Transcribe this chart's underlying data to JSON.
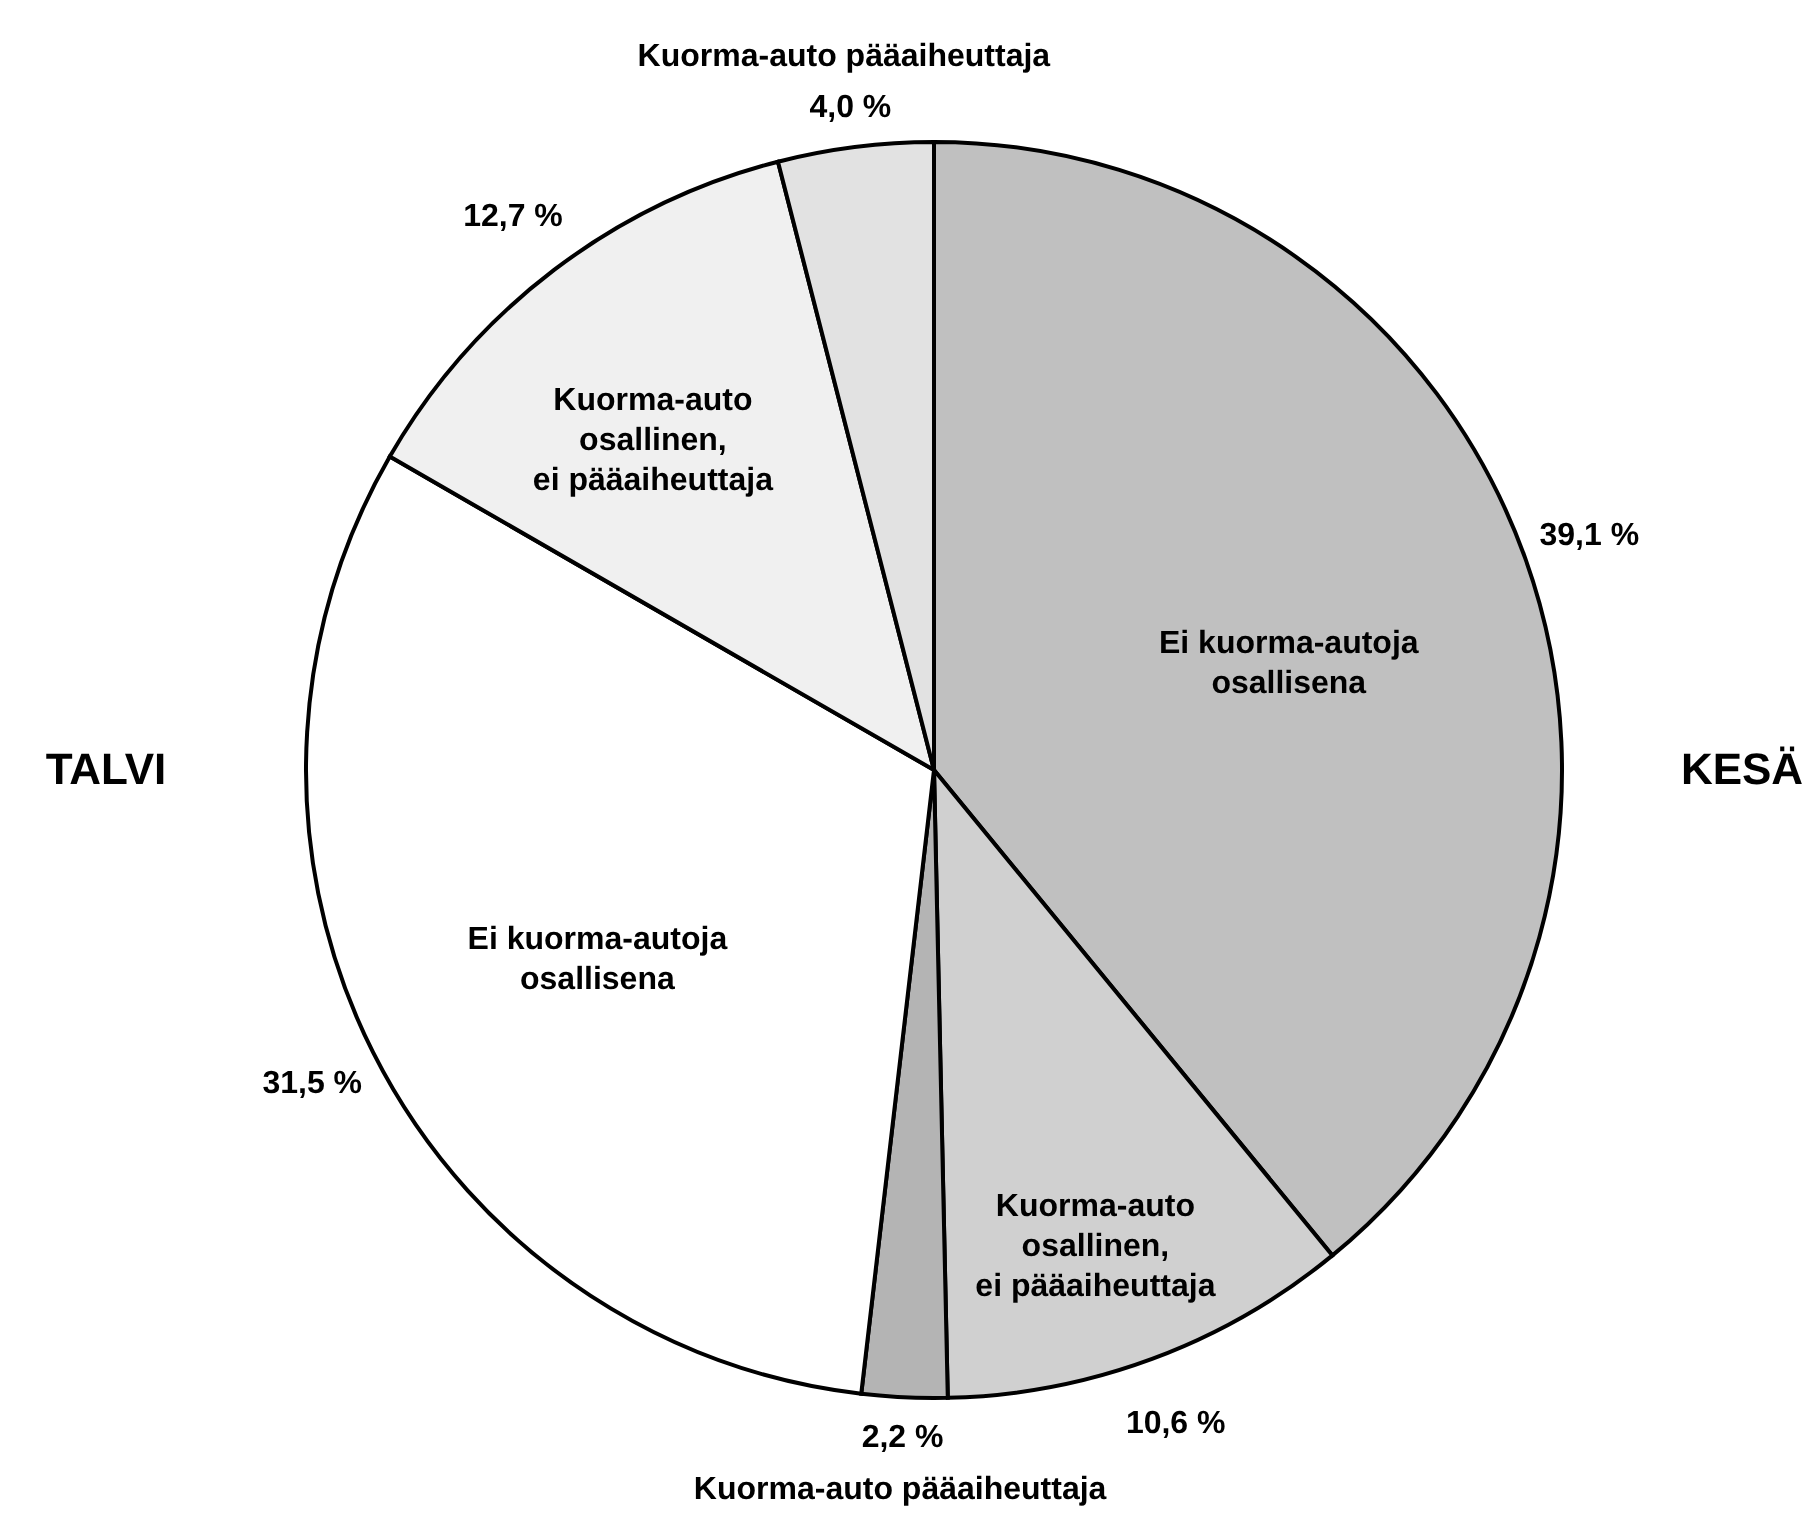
{
  "chart_data": {
    "type": "pie",
    "categories": [
      "Ei kuorma-autoja osallisena",
      "Kuorma-auto osallinen, ei pääaiheuttaja",
      "Kuorma-auto pääaiheuttaja",
      "Ei kuorma-autoja osallisena",
      "Kuorma-auto osallinen, ei pääaiheuttaja",
      "Kuorma-auto pääaiheuttaja"
    ],
    "values": [
      39.1,
      10.6,
      2.2,
      31.5,
      12.7,
      4.0
    ],
    "value_labels": [
      "39,1 %",
      "10,6 %",
      "2,2 %",
      "31,5 %",
      "12,7 %",
      "4,0 %"
    ],
    "colors": [
      "#c0c0c0",
      "#d0d0d0",
      "#b4b4b4",
      "#ffffff",
      "#f0f0f0",
      "#e2e2e2"
    ],
    "annotations": [
      "KESÄ",
      "TALVI"
    ]
  }
}
